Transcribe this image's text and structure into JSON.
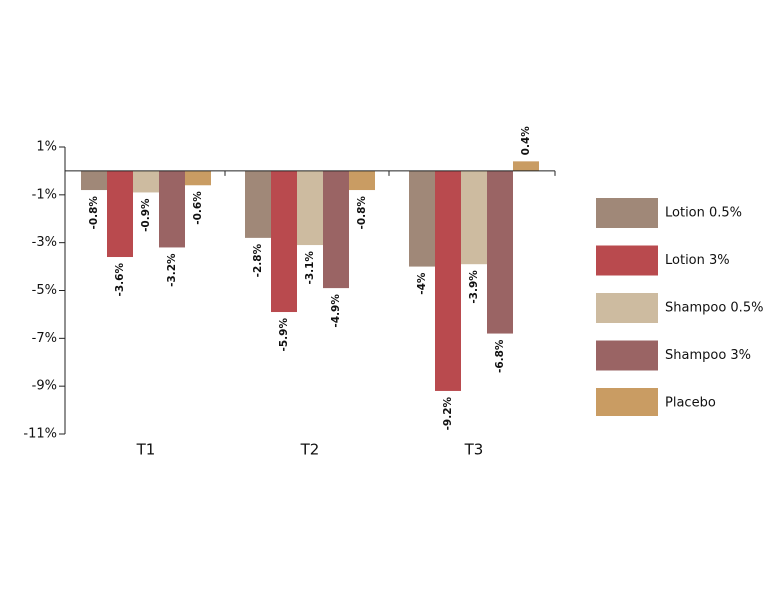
{
  "chart_data": {
    "type": "bar",
    "categories": [
      "T1",
      "T2",
      "T3"
    ],
    "series": [
      {
        "name": "Lotion 0.5%",
        "color": "#a08878",
        "values": [
          -0.8,
          -2.8,
          -4
        ],
        "value_labels": [
          "-0.8%",
          "-2.8%",
          "-4%"
        ]
      },
      {
        "name": "Lotion 3%",
        "color": "#b94a4e",
        "values": [
          -3.6,
          -5.9,
          -9.2
        ],
        "value_labels": [
          "-3.6%",
          "-5.9%",
          "-9.2%"
        ]
      },
      {
        "name": "Shampoo 0.5%",
        "color": "#cdbba0",
        "values": [
          -0.9,
          -3.1,
          -3.9
        ],
        "value_labels": [
          "-0.9%",
          "-3.1%",
          "-3.9%"
        ]
      },
      {
        "name": "Shampoo 3%",
        "color": "#9a6464",
        "values": [
          -3.2,
          -4.9,
          -6.8
        ],
        "value_labels": [
          "-3.2%",
          "-4.9%",
          "-6.8%"
        ]
      },
      {
        "name": "Placebo",
        "color": "#c99c63",
        "values": [
          -0.6,
          -0.8,
          0.4
        ],
        "value_labels": [
          "-0.6%",
          "-0.8%",
          "0.4%"
        ]
      }
    ],
    "ylim": [
      -11,
      1
    ],
    "yticks": [
      {
        "value": 1,
        "label": "1%"
      },
      {
        "value": -1,
        "label": "-1%"
      },
      {
        "value": -3,
        "label": "-3%"
      },
      {
        "value": -5,
        "label": "-5%"
      },
      {
        "value": -7,
        "label": "-7%"
      },
      {
        "value": -9,
        "label": "-9%"
      },
      {
        "value": -11,
        "label": "-11%"
      }
    ],
    "legend": "right"
  }
}
